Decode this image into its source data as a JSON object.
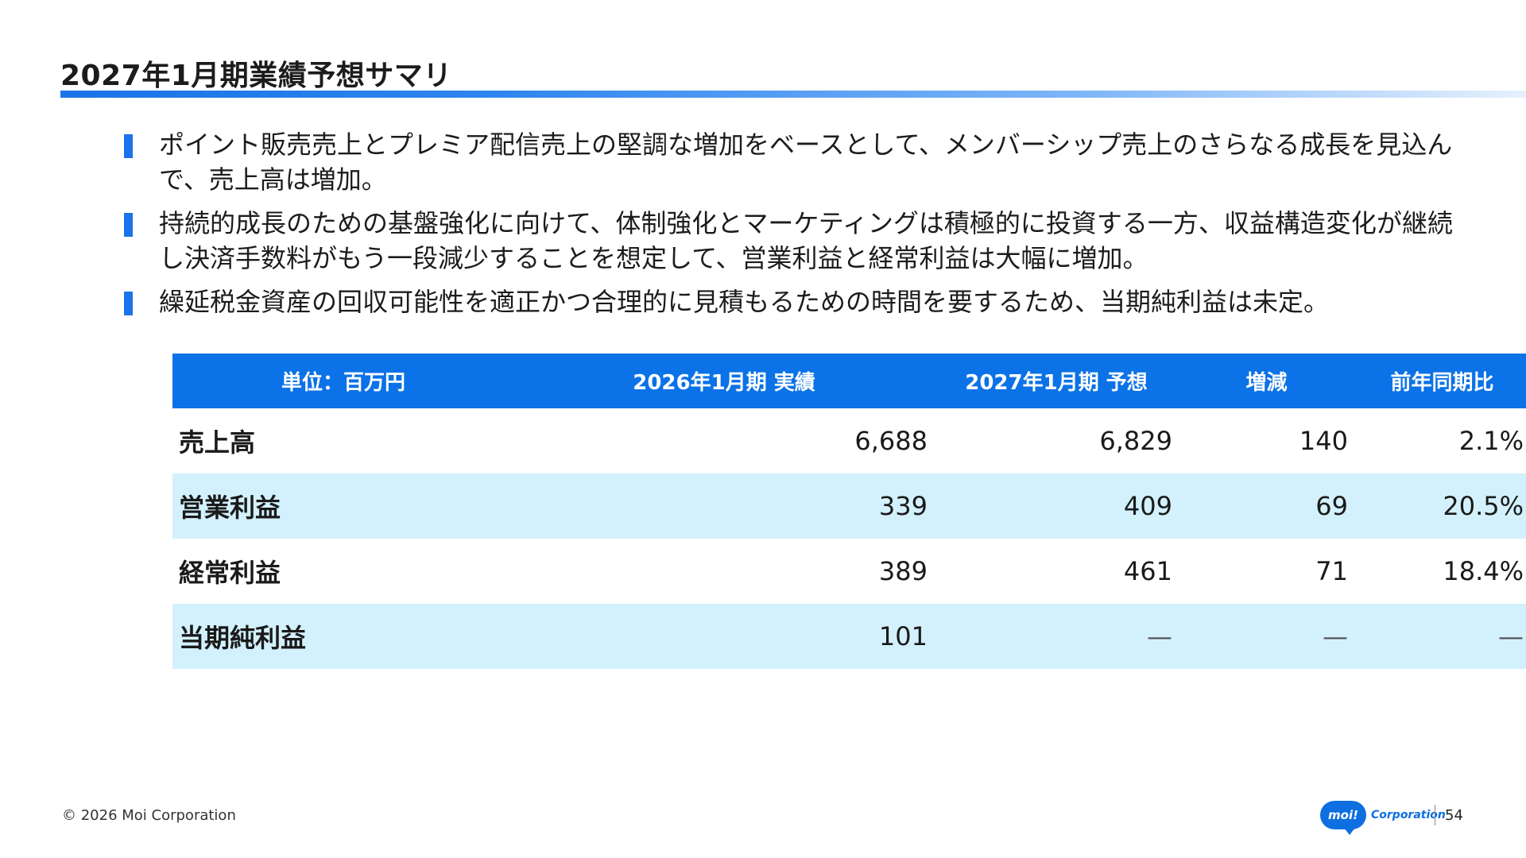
{
  "slide": {
    "title": "2027年1月期業績予想サマリ",
    "bullets": [
      "ポイント販売売上とプレミア配信売上の堅調な増加をベースとして、メンバーシップ売上のさらなる成長を見込んで、売上高は増加。",
      "持続的成長のための基盤強化に向けて、体制強化とマーケティングは積極的に投資する一方、収益構造変化が継続し決済手数料がもう一段減少することを想定して、営業利益と経常利益は大幅に増加。",
      "繰延税金資産の回収可能性を適正かつ合理的に見積もるための時間を要するため、当期純利益は未定。"
    ]
  },
  "table": {
    "headers": [
      "単位：百万円",
      "2026年1月期 実績",
      "2027年1月期 予想",
      "増減",
      "前年同期比"
    ],
    "rows": [
      {
        "label": "売上高",
        "actual": "6,688",
        "forecast": "6,829",
        "change": "140",
        "yoy": "2.1%"
      },
      {
        "label": "営業利益",
        "actual": "339",
        "forecast": "409",
        "change": "69",
        "yoy": "20.5%"
      },
      {
        "label": "経常利益",
        "actual": "389",
        "forecast": "461",
        "change": "71",
        "yoy": "18.4%"
      },
      {
        "label": "当期純利益",
        "actual": "101",
        "forecast": "—",
        "change": "—",
        "yoy": "—"
      }
    ]
  },
  "footer": {
    "copyright": "© 2026 Moi Corporation",
    "logo_mark": "moi!",
    "logo_text": "Corporation",
    "page_number": "54"
  },
  "colors": {
    "accent": "#1a73e8",
    "header_bg": "#0b72e7",
    "row_alt_bg": "#d3f1fc"
  }
}
